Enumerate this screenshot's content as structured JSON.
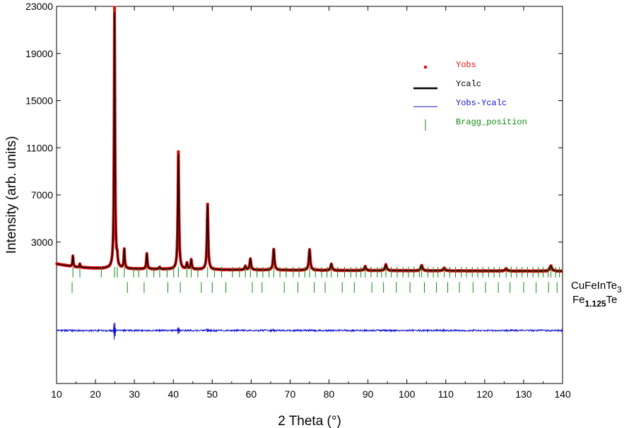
{
  "chart_data": {
    "type": "line",
    "title": "",
    "xlabel": "2 Theta (°)",
    "ylabel": "Intensity (arb. units)",
    "xlim": [
      10,
      140
    ],
    "ylim": [
      -9000,
      23000
    ],
    "x_ticks": [
      10,
      20,
      30,
      40,
      50,
      60,
      70,
      80,
      90,
      100,
      110,
      120,
      130,
      140
    ],
    "y_ticks": [
      3000,
      7000,
      11000,
      15000,
      19000,
      23000
    ],
    "grid": false,
    "legend_position": "top-right",
    "colors": {
      "yobs": "#dd1111",
      "ycalc": "#000000",
      "diff": "#1111cc",
      "bragg": "#118811"
    },
    "legend": [
      {
        "key": "yobs",
        "label": "Yobs"
      },
      {
        "key": "ycalc",
        "label": "Ycalc"
      },
      {
        "key": "diff",
        "label": "Yobs-Ycalc"
      },
      {
        "key": "bragg",
        "label": "Bragg_position"
      }
    ],
    "background": [
      [
        10,
        1150
      ],
      [
        15,
        870
      ],
      [
        20,
        780
      ],
      [
        30,
        720
      ],
      [
        50,
        660
      ],
      [
        80,
        600
      ],
      [
        110,
        560
      ],
      [
        140,
        530
      ]
    ],
    "peaks": [
      {
        "x": 14.2,
        "h": 900
      },
      {
        "x": 16.0,
        "h": 300
      },
      {
        "x": 24.9,
        "h": 21700
      },
      {
        "x": 25.6,
        "h": 700
      },
      {
        "x": 27.4,
        "h": 1650
      },
      {
        "x": 33.2,
        "h": 1300
      },
      {
        "x": 36.5,
        "h": 200
      },
      {
        "x": 41.3,
        "h": 9800
      },
      {
        "x": 43.5,
        "h": 500
      },
      {
        "x": 44.6,
        "h": 800
      },
      {
        "x": 48.8,
        "h": 5500
      },
      {
        "x": 58.5,
        "h": 300
      },
      {
        "x": 59.8,
        "h": 950
      },
      {
        "x": 65.8,
        "h": 1800
      },
      {
        "x": 75.0,
        "h": 1750
      },
      {
        "x": 80.6,
        "h": 550
      },
      {
        "x": 89.3,
        "h": 350
      },
      {
        "x": 94.6,
        "h": 500
      },
      {
        "x": 103.8,
        "h": 450
      },
      {
        "x": 109.6,
        "h": 250
      },
      {
        "x": 125.5,
        "h": 200
      },
      {
        "x": 137.0,
        "h": 450
      }
    ],
    "diff_baseline": -4500,
    "bragg_rows": [
      {
        "name": "CuFeInTe3",
        "baseline": 0,
        "height": 900
      },
      {
        "name": "Fe1.125Te",
        "baseline": -1300,
        "height": 900
      }
    ],
    "bragg_positions": [
      [
        14.2,
        16.0,
        21.5,
        24.9,
        25.6,
        27.4,
        29.8,
        31.1,
        33.2,
        35.0,
        36.5,
        38.4,
        40.1,
        41.3,
        43.5,
        44.6,
        46.3,
        48.8,
        50.6,
        52.4,
        55.2,
        57.0,
        58.5,
        59.8,
        61.5,
        63.0,
        64.6,
        65.8,
        67.4,
        69.0,
        70.8,
        72.3,
        73.8,
        75.0,
        76.5,
        78.1,
        79.5,
        80.6,
        82.2,
        84.0,
        85.6,
        87.0,
        88.2,
        89.3,
        90.8,
        92.4,
        93.5,
        94.6,
        96.0,
        97.5,
        99.0,
        100.4,
        101.8,
        103.2,
        103.8,
        105.4,
        106.8,
        108.0,
        109.6,
        111.0,
        112.5,
        114.0,
        115.3,
        116.8,
        118.2,
        119.5,
        121.0,
        122.4,
        123.8,
        125.5,
        126.8,
        128.2,
        129.6,
        131.0,
        132.4,
        133.8,
        135.0,
        136.3,
        137.0,
        138.2,
        139.2
      ],
      [
        14.0,
        28.2,
        32.5,
        38.6,
        41.8,
        47.2,
        50.0,
        53.5,
        60.3,
        62.8,
        68.5,
        72.0,
        76.2,
        79.0,
        83.4,
        86.5,
        91.0,
        94.0,
        97.3,
        100.8,
        104.5,
        107.6,
        110.5,
        113.5,
        117.0,
        120.2,
        123.5,
        126.5,
        130.0,
        133.2,
        136.4,
        138.6
      ]
    ],
    "phase_labels": [
      {
        "main": "CuFeInTe",
        "sub": "3",
        "sub_bold": false
      },
      {
        "pre": "Fe",
        "sub": "1.125",
        "post": "Te",
        "sub_bold": true
      }
    ]
  }
}
